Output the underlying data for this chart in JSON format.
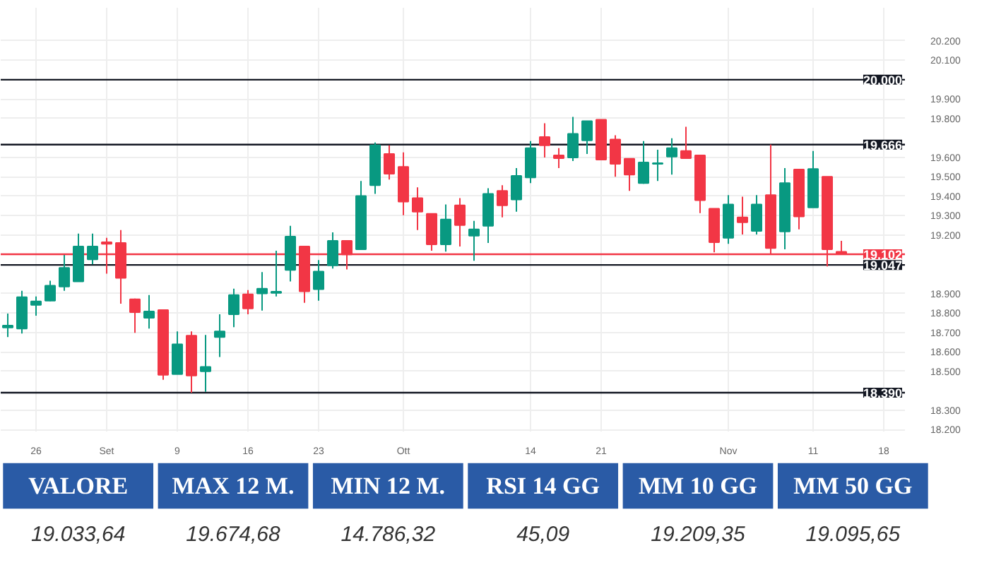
{
  "chart_data": {
    "type": "candlestick",
    "categories": [
      null,
      null,
      "26",
      null,
      null,
      null,
      null,
      "Set",
      null,
      null,
      null,
      null,
      "9",
      null,
      null,
      null,
      null,
      "16",
      null,
      null,
      null,
      null,
      "23",
      null,
      null,
      null,
      null,
      null,
      "Ott",
      null,
      null,
      null,
      null,
      null,
      null,
      null,
      null,
      "14",
      null,
      null,
      null,
      null,
      "21",
      null,
      null,
      null,
      null,
      null,
      null,
      null,
      null,
      "Nov",
      null,
      null,
      null,
      null,
      null,
      "11",
      null,
      null,
      null,
      null,
      "18",
      null
    ],
    "ohlc": [
      [
        18725,
        18797,
        18676,
        18735
      ],
      [
        18720,
        18914,
        18694,
        18881
      ],
      [
        18841,
        18885,
        18786,
        18859
      ],
      [
        18863,
        18966,
        18860,
        18940
      ],
      [
        18936,
        19098,
        18914,
        19032
      ],
      [
        18962,
        19208,
        18960,
        19142
      ],
      [
        19076,
        19208,
        19050,
        19142
      ],
      [
        19164,
        19186,
        19002,
        19156
      ],
      [
        19160,
        19226,
        18848,
        18980
      ],
      [
        18870,
        18874,
        18698,
        18804
      ],
      [
        18775,
        18892,
        18720,
        18808
      ],
      [
        18815,
        18815,
        18456,
        18482
      ],
      [
        18485,
        18705,
        18485,
        18639
      ],
      [
        18683,
        18705,
        18390,
        18478
      ],
      [
        18500,
        18687,
        18394,
        18522
      ],
      [
        18676,
        18793,
        18573,
        18705
      ],
      [
        18793,
        18925,
        18727,
        18892
      ],
      [
        18896,
        18918,
        18793,
        18823
      ],
      [
        18900,
        19010,
        18812,
        18925
      ],
      [
        18903,
        19120,
        18885,
        18909
      ],
      [
        19021,
        19248,
        18962,
        19193
      ],
      [
        19142,
        19142,
        18852,
        18911
      ],
      [
        18922,
        19072,
        18863,
        19013
      ],
      [
        19045,
        19215,
        19028,
        19171
      ],
      [
        19171,
        19171,
        19024,
        19101
      ],
      [
        19127,
        19479,
        19127,
        19402
      ],
      [
        19457,
        19677,
        19413,
        19662
      ],
      [
        19618,
        19662,
        19486,
        19516
      ],
      [
        19552,
        19626,
        19303,
        19373
      ],
      [
        19391,
        19446,
        19226,
        19321
      ],
      [
        19310,
        19310,
        19120,
        19153
      ],
      [
        19153,
        19358,
        19116,
        19281
      ],
      [
        19354,
        19391,
        19142,
        19252
      ],
      [
        19197,
        19274,
        19068,
        19230
      ],
      [
        19248,
        19442,
        19160,
        19413
      ],
      [
        19428,
        19457,
        19292,
        19354
      ],
      [
        19384,
        19545,
        19321,
        19505
      ],
      [
        19497,
        19684,
        19468,
        19648
      ],
      [
        19705,
        19776,
        19600,
        19662
      ],
      [
        19611,
        19648,
        19545,
        19596
      ],
      [
        19600,
        19809,
        19582,
        19721
      ],
      [
        19688,
        19787,
        19618,
        19787
      ],
      [
        19794,
        19794,
        19589,
        19589
      ],
      [
        19692,
        19714,
        19501,
        19567
      ],
      [
        19593,
        19593,
        19428,
        19512
      ],
      [
        19468,
        19684,
        19464,
        19574
      ],
      [
        19567,
        19640,
        19479,
        19571
      ],
      [
        19604,
        19699,
        19512,
        19648
      ],
      [
        19633,
        19758,
        19596,
        19596
      ],
      [
        19611,
        19611,
        19314,
        19380
      ],
      [
        19336,
        19336,
        19112,
        19164
      ],
      [
        19186,
        19406,
        19156,
        19358
      ],
      [
        19292,
        19398,
        19204,
        19266
      ],
      [
        19222,
        19406,
        19204,
        19358
      ],
      [
        19406,
        19666,
        19105,
        19134
      ],
      [
        19219,
        19545,
        19127,
        19468
      ],
      [
        19538,
        19538,
        19230,
        19296
      ],
      [
        19343,
        19633,
        19343,
        19541
      ],
      [
        19501,
        19501,
        19039,
        19127
      ],
      [
        19115,
        19171,
        19102,
        19102
      ],
      null,
      null,
      null,
      null
    ],
    "colors": [
      "#089981",
      "#089981",
      "#089981",
      "#089981",
      "#089981",
      "#089981",
      "#089981",
      "#f23645",
      "#f23645",
      "#f23645",
      "#089981",
      "#f23645",
      "#089981",
      "#f23645",
      "#089981",
      "#089981",
      "#089981",
      "#f23645",
      "#089981",
      "#089981",
      "#089981",
      "#f23645",
      "#089981",
      "#089981",
      "#f23645",
      "#089981",
      "#089981",
      "#f23645",
      "#f23645",
      "#f23645",
      "#f23645",
      "#089981",
      "#f23645",
      "#089981",
      "#089981",
      "#f23645",
      "#089981",
      "#089981",
      "#f23645",
      "#f23645",
      "#089981",
      "#089981",
      "#f23645",
      "#f23645",
      "#f23645",
      "#089981",
      "#089981",
      "#089981",
      "#f23645",
      "#f23645",
      "#f23645",
      "#089981",
      "#f23645",
      "#089981",
      "#f23645",
      "#089981",
      "#f23645",
      "#089981",
      "#f23645",
      "#f23645",
      null,
      null,
      null,
      null
    ],
    "ylim": [
      18190,
      20370
    ],
    "yticks": [
      {
        "value": 18200,
        "label": "18.200"
      },
      {
        "value": 18300,
        "label": "18.300"
      },
      {
        "value": 18500,
        "label": "18.500"
      },
      {
        "value": 18600,
        "label": "18.600"
      },
      {
        "value": 18700,
        "label": "18.700"
      },
      {
        "value": 18800,
        "label": "18.800"
      },
      {
        "value": 18900,
        "label": "18.900"
      },
      {
        "value": 19200,
        "label": "19.200"
      },
      {
        "value": 19300,
        "label": "19.300"
      },
      {
        "value": 19400,
        "label": "19.400"
      },
      {
        "value": 19500,
        "label": "19.500"
      },
      {
        "value": 19600,
        "label": "19.600"
      },
      {
        "value": 19800,
        "label": "19.800"
      },
      {
        "value": 19900,
        "label": "19.900"
      },
      {
        "value": 20100,
        "label": "20.100"
      },
      {
        "value": 20200,
        "label": "20.200"
      }
    ],
    "grid": true,
    "ref_lines": [
      {
        "axis": "y",
        "value": 20000,
        "label": "20.000",
        "color": "#131722"
      },
      {
        "axis": "y",
        "value": 19666,
        "label": "19.666",
        "color": "#131722"
      },
      {
        "axis": "y",
        "value": 19102,
        "label": "19.102",
        "color": "#f23645"
      },
      {
        "axis": "y",
        "value": 19047,
        "label": "19.047",
        "color": "#131722"
      },
      {
        "axis": "y",
        "value": 18390,
        "label": "18.390",
        "color": "#131722"
      }
    ],
    "annotations": [
      "VALORE",
      "MAX 12 M.",
      "MIN 12 M.",
      "RSI 14 GG",
      "MM 10 GG",
      "MM 50 GG",
      "19.033,64",
      "19.674,68",
      "14.786,32",
      "45,09",
      "19.209,35",
      "19.095,65"
    ]
  }
}
